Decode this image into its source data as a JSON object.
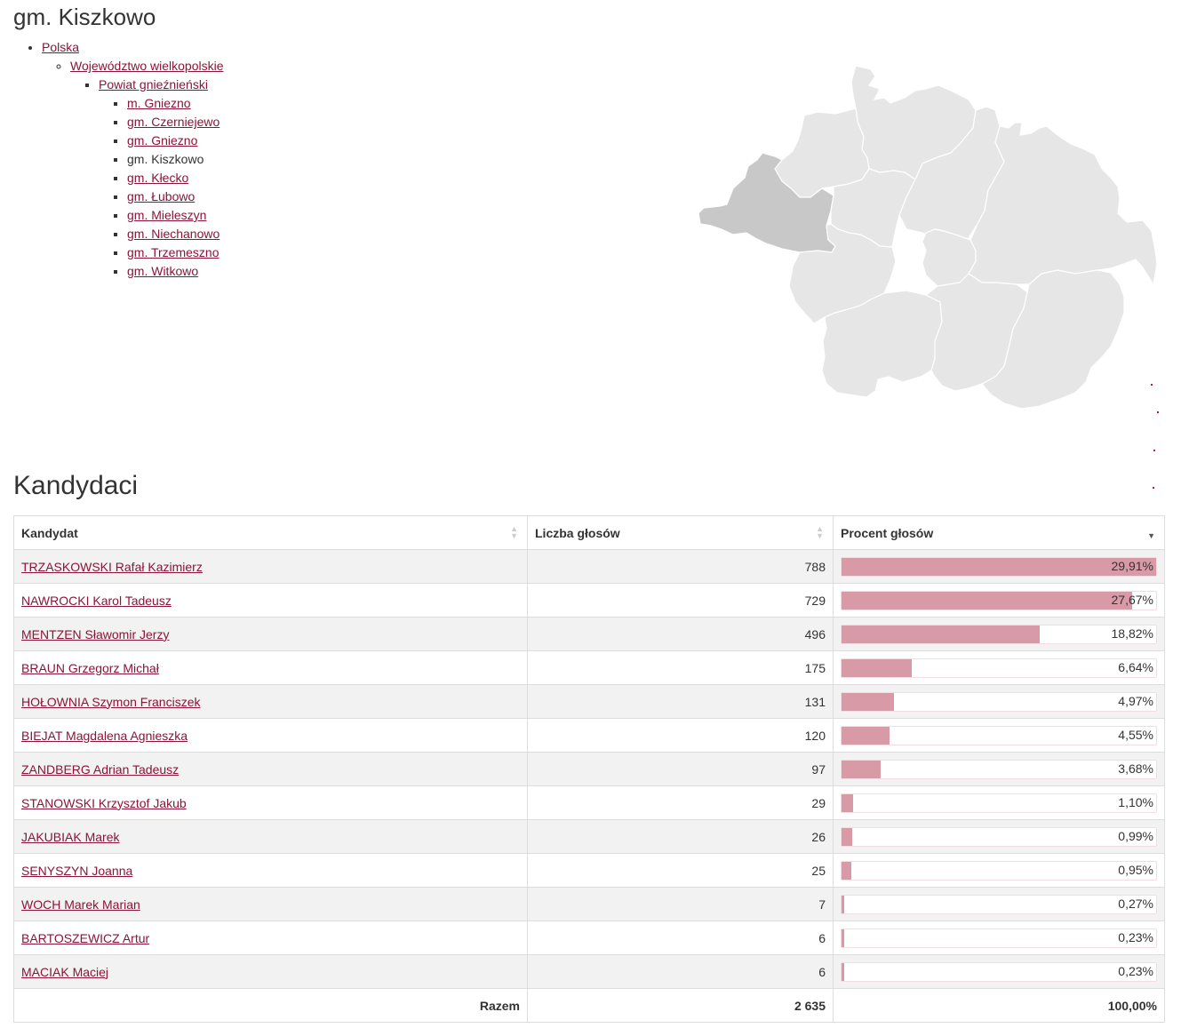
{
  "page": {
    "title": "gm. Kiszkowo"
  },
  "breadcrumb": {
    "country": "Polska",
    "voivodeship": "Województwo wielkopolskie",
    "county": "Powiat gnieźnieński",
    "gminas": [
      {
        "label": "m. Gniezno",
        "link": true
      },
      {
        "label": "gm. Czerniejewo",
        "link": true
      },
      {
        "label": "gm. Gniezno",
        "link": true
      },
      {
        "label": "gm. Kiszkowo",
        "link": false
      },
      {
        "label": "gm. Kłecko",
        "link": true
      },
      {
        "label": "gm. Łubowo",
        "link": true
      },
      {
        "label": "gm. Mieleszyn",
        "link": true
      },
      {
        "label": "gm. Niechanowo",
        "link": true
      },
      {
        "label": "gm. Trzemeszno",
        "link": true
      },
      {
        "label": "gm. Witkowo",
        "link": true
      }
    ]
  },
  "map": {
    "highlight_color": "#c8c8c8",
    "fill_color": "#e6e6e6",
    "stroke_color": "#ffffff"
  },
  "section": {
    "title": "Kandydaci"
  },
  "table": {
    "headers": [
      "Kandydat",
      "Liczba głosów",
      "Procent głosów"
    ],
    "rows": [
      {
        "name": "TRZASKOWSKI Rafał Kazimierz",
        "votes": "788",
        "percent": "29,91%",
        "fraction": 1.0
      },
      {
        "name": "NAWROCKI Karol Tadeusz",
        "votes": "729",
        "percent": "27,67%",
        "fraction": 0.925
      },
      {
        "name": "MENTZEN Sławomir Jerzy",
        "votes": "496",
        "percent": "18,82%",
        "fraction": 0.629
      },
      {
        "name": "BRAUN Grzegorz Michał",
        "votes": "175",
        "percent": "6,64%",
        "fraction": 0.222
      },
      {
        "name": "HOŁOWNIA Szymon Franciszek",
        "votes": "131",
        "percent": "4,97%",
        "fraction": 0.166
      },
      {
        "name": "BIEJAT Magdalena Agnieszka",
        "votes": "120",
        "percent": "4,55%",
        "fraction": 0.152
      },
      {
        "name": "ZANDBERG Adrian Tadeusz",
        "votes": "97",
        "percent": "3,68%",
        "fraction": 0.123
      },
      {
        "name": "STANOWSKI Krzysztof Jakub",
        "votes": "29",
        "percent": "1,10%",
        "fraction": 0.037
      },
      {
        "name": "JAKUBIAK Marek",
        "votes": "26",
        "percent": "0,99%",
        "fraction": 0.033
      },
      {
        "name": "SENYSZYN Joanna",
        "votes": "25",
        "percent": "0,95%",
        "fraction": 0.032
      },
      {
        "name": "WOCH Marek Marian",
        "votes": "7",
        "percent": "0,27%",
        "fraction": 0.009
      },
      {
        "name": "BARTOSZEWICZ Artur",
        "votes": "6",
        "percent": "0,23%",
        "fraction": 0.008
      },
      {
        "name": "MACIAK Maciej",
        "votes": "6",
        "percent": "0,23%",
        "fraction": 0.008
      }
    ],
    "footer": {
      "label": "Razem",
      "votes": "2 635",
      "percent": "100,00%"
    }
  }
}
